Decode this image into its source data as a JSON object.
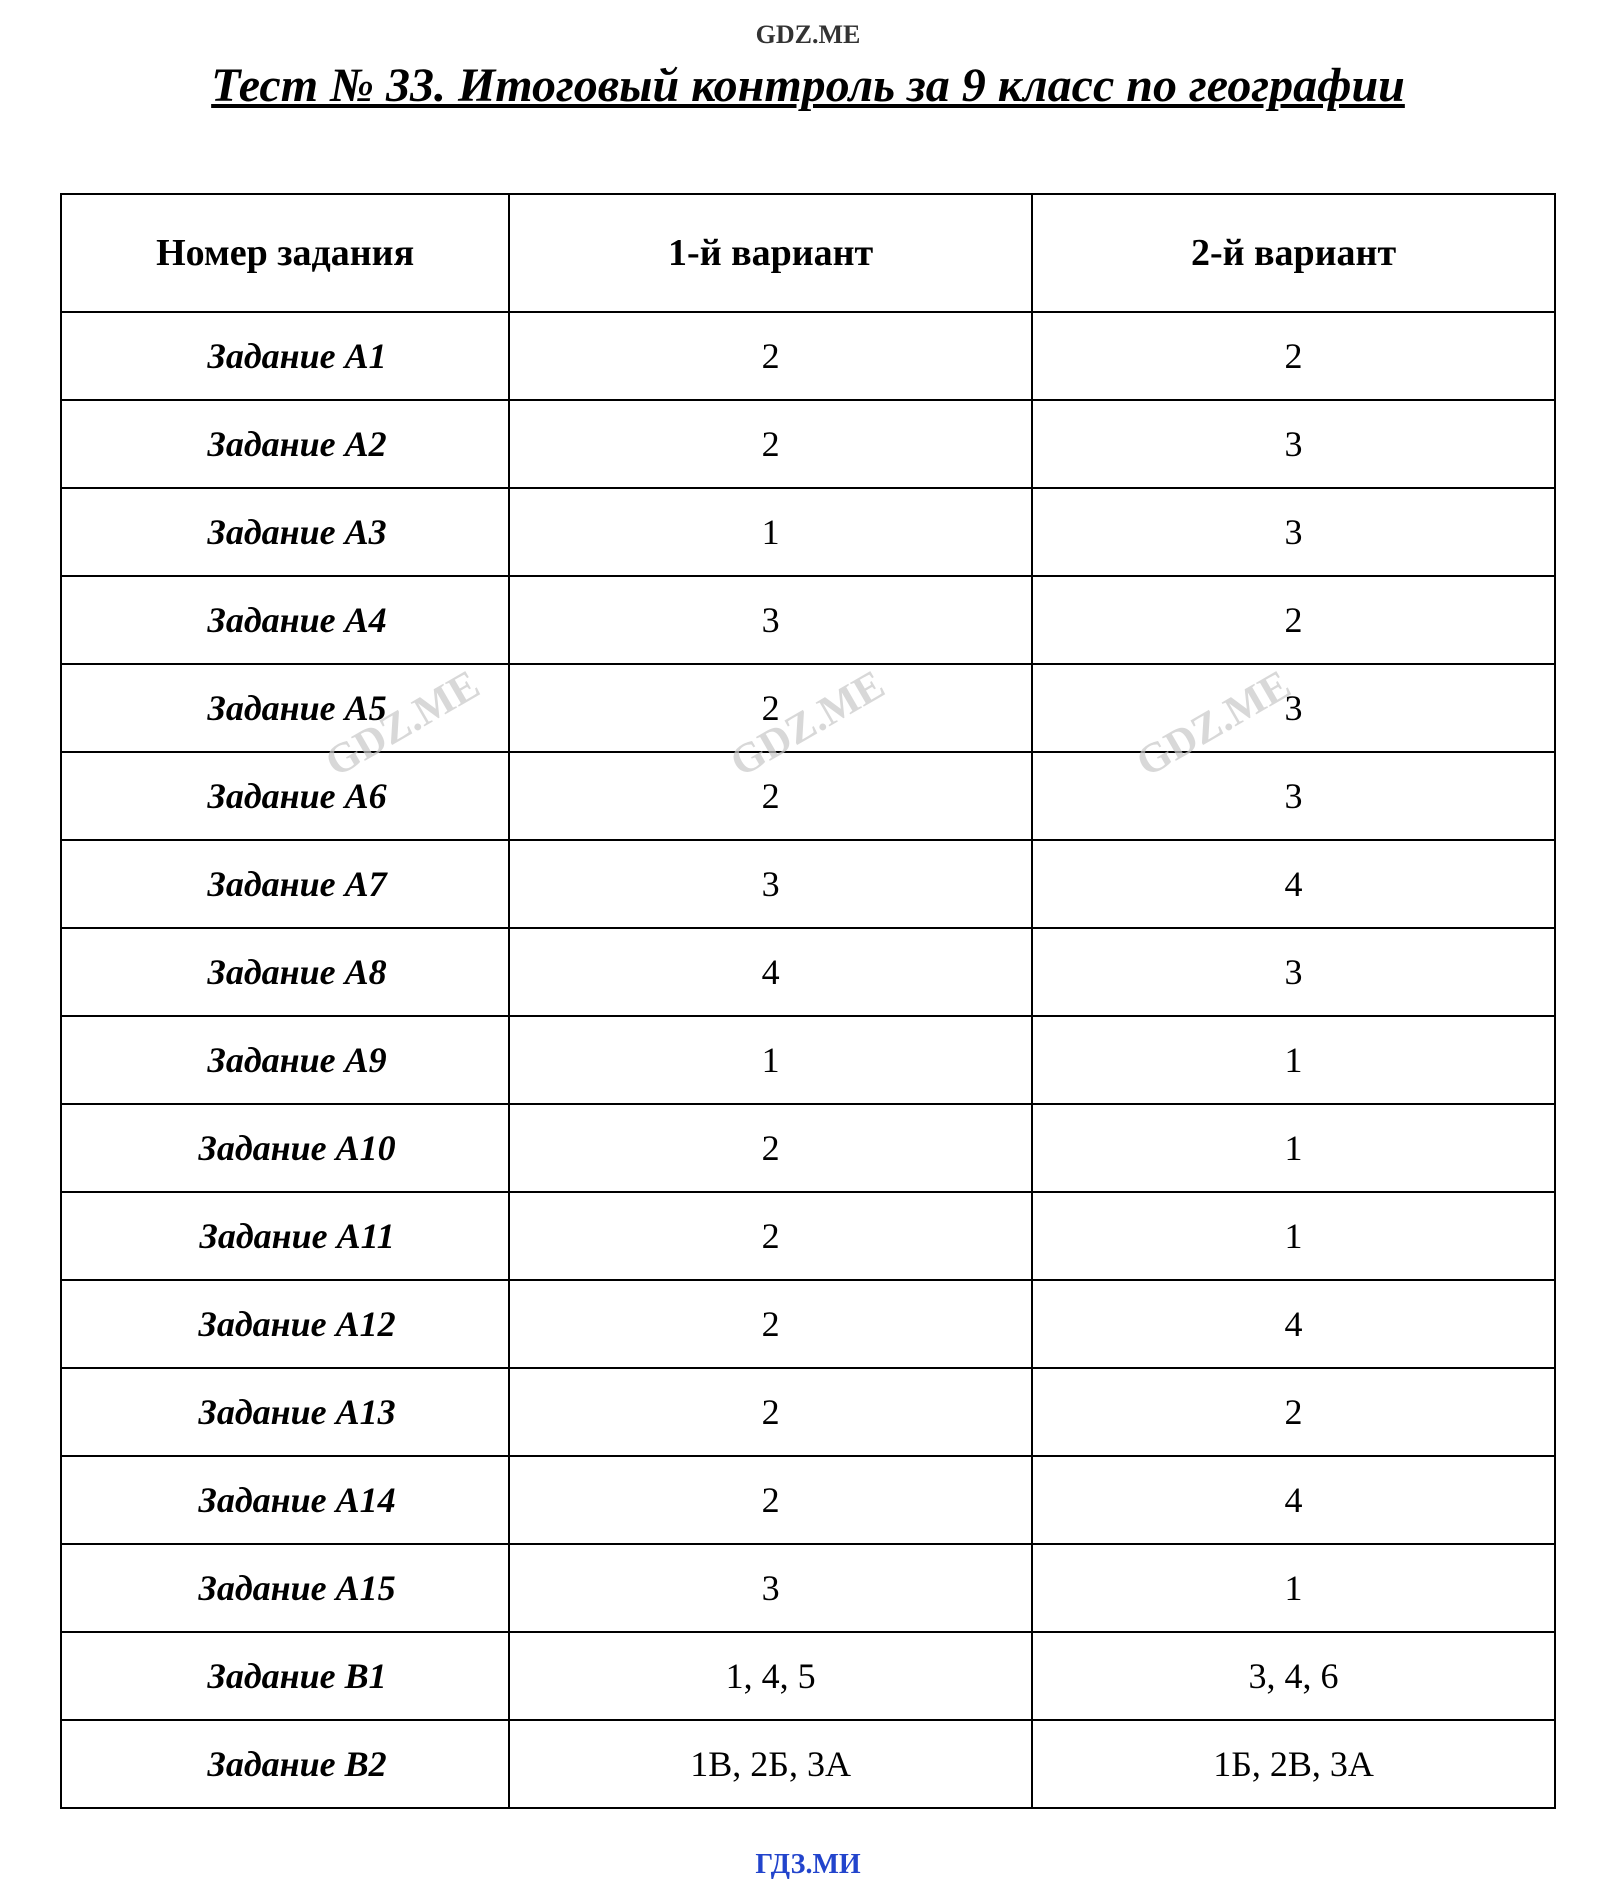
{
  "header_watermark": "GDZ.ME",
  "title": "Тест № 33. Итоговый контроль за 9 класс по географии",
  "table": {
    "columns": [
      "Номер задания",
      "1-й вариант",
      "2-й вариант"
    ],
    "rows": [
      [
        "Задание А1",
        "2",
        "2"
      ],
      [
        "Задание А2",
        "2",
        "3"
      ],
      [
        "Задание А3",
        "1",
        "3"
      ],
      [
        "Задание А4",
        "3",
        "2"
      ],
      [
        "Задание А5",
        "2",
        "3"
      ],
      [
        "Задание А6",
        "2",
        "3"
      ],
      [
        "Задание А7",
        "3",
        "4"
      ],
      [
        "Задание А8",
        "4",
        "3"
      ],
      [
        "Задание А9",
        "1",
        "1"
      ],
      [
        "Задание А10",
        "2",
        "1"
      ],
      [
        "Задание А11",
        "2",
        "1"
      ],
      [
        "Задание А12",
        "2",
        "4"
      ],
      [
        "Задание А13",
        "2",
        "2"
      ],
      [
        "Задание А14",
        "2",
        "4"
      ],
      [
        "Задание А15",
        "3",
        "1"
      ],
      [
        "Задание В1",
        "1, 4, 5",
        "3, 4, 6"
      ],
      [
        "Задание В2",
        "1В, 2Б, 3А",
        "1Б, 2В, 3А"
      ]
    ]
  },
  "watermark_text": "GDZ.ME",
  "footer_watermark": "ГДЗ.МИ",
  "colors": {
    "text": "#000000",
    "border": "#000000",
    "background": "#ffffff",
    "watermark": "#c8c8c8",
    "footer": "#2244cc"
  },
  "fonts": {
    "family": "Times New Roman",
    "title_size": 48,
    "header_size": 38,
    "cell_size": 36
  }
}
